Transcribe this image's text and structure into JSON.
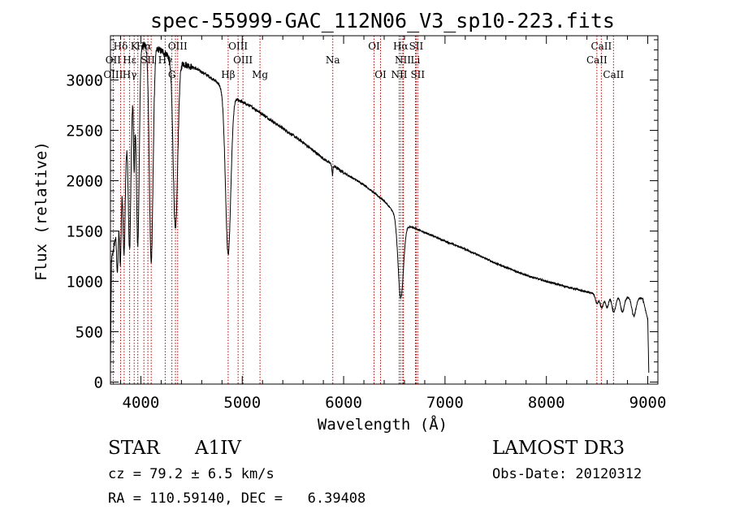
{
  "chart_data": {
    "type": "line",
    "title": "spec-55999-GAC_112N06_V3_sp10-223.fits",
    "xlabel": "Wavelength (Å)",
    "ylabel": "Flux (relative)",
    "xlim": [
      3700,
      9100
    ],
    "ylim": [
      -20,
      3440
    ],
    "xticks": [
      4000,
      5000,
      6000,
      7000,
      8000,
      9000
    ],
    "yticks": [
      0,
      500,
      1000,
      1500,
      2000,
      2500,
      3000
    ],
    "continuum": [
      [
        3700,
        100
      ],
      [
        3710,
        1200
      ],
      [
        3760,
        1500
      ],
      [
        3800,
        1900
      ],
      [
        3850,
        2300
      ],
      [
        3900,
        2700
      ],
      [
        3960,
        3100
      ],
      [
        4000,
        3350
      ],
      [
        4080,
        3350
      ],
      [
        4150,
        3320
      ],
      [
        4250,
        3260
      ],
      [
        4350,
        3200
      ],
      [
        4450,
        3150
      ],
      [
        4550,
        3110
      ],
      [
        4650,
        3050
      ],
      [
        4750,
        2980
      ],
      [
        4820,
        2900
      ],
      [
        4900,
        2840
      ],
      [
        5000,
        2780
      ],
      [
        5100,
        2730
      ],
      [
        5200,
        2660
      ],
      [
        5400,
        2520
      ],
      [
        5600,
        2380
      ],
      [
        5800,
        2220
      ],
      [
        6000,
        2080
      ],
      [
        6200,
        1960
      ],
      [
        6400,
        1800
      ],
      [
        6600,
        1560
      ],
      [
        6700,
        1530
      ],
      [
        7000,
        1400
      ],
      [
        7200,
        1320
      ],
      [
        7500,
        1180
      ],
      [
        7800,
        1060
      ],
      [
        8000,
        1000
      ],
      [
        8300,
        920
      ],
      [
        8500,
        870
      ],
      [
        8700,
        850
      ],
      [
        8950,
        830
      ],
      [
        9000,
        620
      ],
      [
        9010,
        100
      ]
    ],
    "absorption": [
      {
        "center": 3770,
        "depth": 500,
        "width": 8
      },
      {
        "center": 3798,
        "depth": 700,
        "width": 8
      },
      {
        "center": 3835,
        "depth": 900,
        "width": 10
      },
      {
        "center": 3889,
        "depth": 1300,
        "width": 12
      },
      {
        "center": 3934,
        "depth": 800,
        "width": 6
      },
      {
        "center": 3970,
        "depth": 1800,
        "width": 14
      },
      {
        "center": 4102,
        "depth": 2150,
        "width": 18
      },
      {
        "center": 4341,
        "depth": 1700,
        "width": 22
      },
      {
        "center": 4861,
        "depth": 1600,
        "width": 26
      },
      {
        "center": 5890,
        "depth": 100,
        "width": 5
      },
      {
        "center": 6563,
        "depth": 770,
        "width": 26
      },
      {
        "center": 8498,
        "depth": 90,
        "width": 14
      },
      {
        "center": 8545,
        "depth": 130,
        "width": 16
      },
      {
        "center": 8598,
        "depth": 120,
        "width": 16
      },
      {
        "center": 8665,
        "depth": 160,
        "width": 18
      },
      {
        "center": 8750,
        "depth": 150,
        "width": 18
      },
      {
        "center": 8863,
        "depth": 180,
        "width": 20
      }
    ],
    "spectral_lines": [
      {
        "label": "Hδ",
        "wavelength": 3800,
        "row": 1
      },
      {
        "label": "K",
        "wavelength": 3934,
        "row": 1
      },
      {
        "label": "Hα",
        "wavelength": 4030,
        "row": 1
      },
      {
        "label": "OIII",
        "wavelength": 4363,
        "row": 1
      },
      {
        "label": "OIII",
        "wavelength": 4959,
        "row": 1
      },
      {
        "label": "OI",
        "wavelength": 6300,
        "row": 1
      },
      {
        "label": "Hα",
        "wavelength": 6563,
        "row": 1
      },
      {
        "label": "SII",
        "wavelength": 6716,
        "row": 1
      },
      {
        "label": "CaII",
        "wavelength": 8542,
        "row": 1
      },
      {
        "label": "OII",
        "wavelength": 3727,
        "row": 2
      },
      {
        "label": "Hε",
        "wavelength": 3889,
        "row": 2
      },
      {
        "label": "SII",
        "wavelength": 4069,
        "row": 2
      },
      {
        "label": "Hγ",
        "wavelength": 4240,
        "row": 2
      },
      {
        "label": "OIII",
        "wavelength": 5007,
        "row": 2
      },
      {
        "label": "Na",
        "wavelength": 5893,
        "row": 2
      },
      {
        "label": "NII",
        "wavelength": 6584,
        "row": 2
      },
      {
        "label": "Li",
        "wavelength": 6708,
        "row": 2
      },
      {
        "label": "CaII",
        "wavelength": 8498,
        "row": 2
      },
      {
        "label": "OIII",
        "wavelength": 3727,
        "row": 3
      },
      {
        "label": "Hγ",
        "wavelength": 3889,
        "row": 3
      },
      {
        "label": "G",
        "wavelength": 4306,
        "row": 3
      },
      {
        "label": "Hβ",
        "wavelength": 4861,
        "row": 3
      },
      {
        "label": "Mg",
        "wavelength": 5175,
        "row": 3
      },
      {
        "label": "OI",
        "wavelength": 6364,
        "row": 3
      },
      {
        "label": "NII",
        "wavelength": 6548,
        "row": 3
      },
      {
        "label": "SII",
        "wavelength": 6731,
        "row": 3
      },
      {
        "label": "CaII",
        "wavelength": 8662,
        "row": 3
      }
    ],
    "extra_marker_lines": [
      3835,
      3970,
      4102,
      4341,
      6583,
      6590
    ]
  },
  "info": {
    "object_class": "STAR",
    "subclass": "A1IV",
    "survey": "LAMOST DR3",
    "redshift": "cz = 79.2 ± 6.5 km/s",
    "obs_date": "Obs-Date: 20120312",
    "coords": "RA = 110.59140, DEC =   6.39408"
  }
}
